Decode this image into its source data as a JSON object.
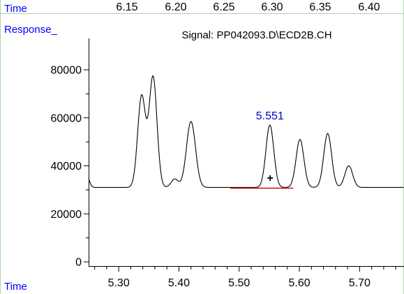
{
  "chart_data": {
    "type": "line",
    "title": "Signal: PP042093.D\\ECD2B.CH",
    "ylabel": "Response_",
    "xlabel": "Time",
    "top_axis": {
      "label": "Time",
      "ticks": [
        "6.15",
        "6.20",
        "6.25",
        "6.30",
        "6.35",
        "6.40"
      ]
    },
    "xlim": [
      5.25,
      5.8
    ],
    "ylim": [
      -1000,
      92000
    ],
    "x_ticks": [
      5.3,
      5.4,
      5.5,
      5.6,
      5.7
    ],
    "x_tick_labels": [
      "5.30",
      "5.40",
      "5.50",
      "5.60",
      "5.70"
    ],
    "y_ticks": [
      0,
      20000,
      40000,
      60000,
      80000
    ],
    "y_tick_labels": [
      "0",
      "20000",
      "40000",
      "60000",
      "80000"
    ],
    "baseline": 31000,
    "peaks": [
      {
        "x": 5.338,
        "y": 69000
      },
      {
        "x": 5.357,
        "y": 77000
      },
      {
        "x": 5.393,
        "y": 34500
      },
      {
        "x": 5.42,
        "y": 58500
      },
      {
        "x": 5.551,
        "y": 57000,
        "label": "5.551"
      },
      {
        "x": 5.601,
        "y": 51000
      },
      {
        "x": 5.647,
        "y": 53500
      },
      {
        "x": 5.682,
        "y": 40000
      }
    ],
    "integration_baseline": {
      "x_start": 5.485,
      "x_end": 5.59,
      "y": 31000
    },
    "marker": {
      "symbol": "+",
      "x": 5.555,
      "y": 34000
    },
    "colors": {
      "axis_labels": "#0000ff",
      "peak_label": "#0000cc",
      "frame": "#a8d6a8",
      "trace": "#000000",
      "integration": "#cc0000"
    }
  }
}
